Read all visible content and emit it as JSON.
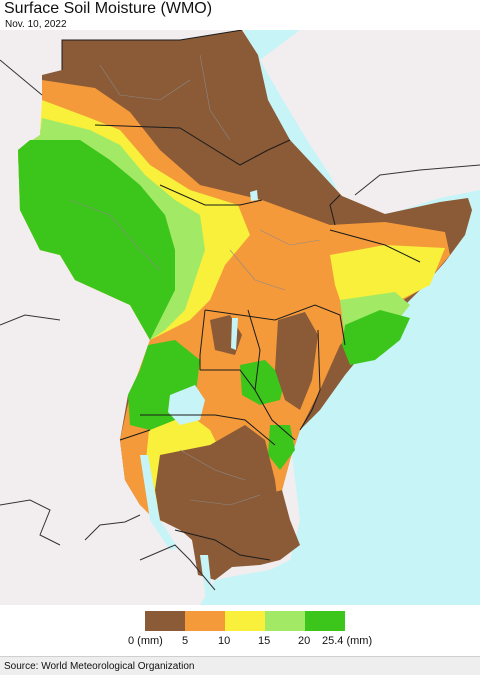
{
  "title": "Surface Soil Moisture (WMO)",
  "date": "Nov. 10, 2022",
  "source": "Source: World Meteorological Organization",
  "colors": {
    "sea": "#c7f4f7",
    "outside_land": "#f2eef0",
    "brown": "#8b5a36",
    "orange": "#f49a3a",
    "yellow": "#f8f03a",
    "light_green": "#a2ea66",
    "green": "#3cc51a",
    "border": "#1c1c1c",
    "admin": "#8a8a8a"
  },
  "legend": {
    "classes": [
      {
        "range": "0–5",
        "color": "#8b5a36"
      },
      {
        "range": "5–10",
        "color": "#f49a3a"
      },
      {
        "range": "10–15",
        "color": "#f8f03a"
      },
      {
        "range": "15–20",
        "color": "#a2ea66"
      },
      {
        "range": "20–25.4",
        "color": "#3cc51a"
      }
    ],
    "ticks": [
      "0 (mm)",
      "5",
      "10",
      "15",
      "20",
      "25.4 (mm)"
    ]
  }
}
